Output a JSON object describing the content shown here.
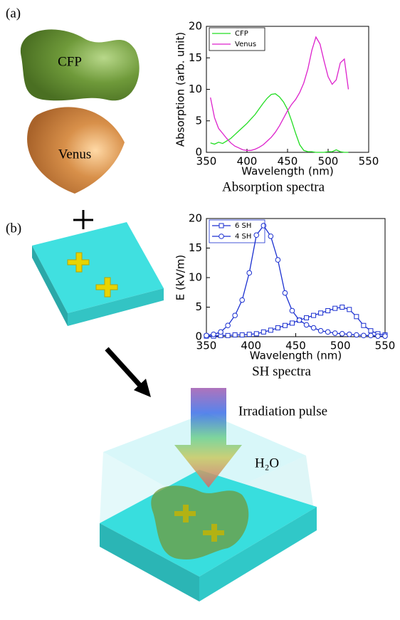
{
  "panel_labels": [
    "(a)",
    "(b)"
  ],
  "illustration": {
    "protein_1": "CFP",
    "protein_2": "Venus",
    "pulse": "Irradiation pulse",
    "medium": "H₂O"
  },
  "chart_data": [
    {
      "type": "line",
      "caption": "Absorption spectra",
      "x_label": "Wavelength (nm)",
      "y_label": "Absorption (arb. unit)",
      "xlim": [
        350,
        550
      ],
      "xticks": [
        350,
        400,
        450,
        500,
        550
      ],
      "ylim": [
        0,
        20
      ],
      "yticks": [
        0,
        5,
        10,
        15,
        20
      ],
      "legend": "upper-left",
      "x": [
        355,
        360,
        365,
        370,
        375,
        380,
        385,
        390,
        395,
        400,
        405,
        410,
        415,
        420,
        425,
        430,
        435,
        440,
        445,
        450,
        455,
        460,
        465,
        470,
        475,
        480,
        485,
        490,
        495,
        500,
        505,
        510,
        515,
        520,
        525
      ],
      "series": [
        {
          "name": "CFP",
          "color": "#22dd22",
          "values": [
            1.5,
            1.3,
            1.6,
            1.4,
            1.8,
            2.2,
            2.8,
            3.4,
            4.0,
            4.6,
            5.3,
            6.0,
            6.9,
            7.8,
            8.6,
            9.2,
            9.3,
            8.8,
            8.0,
            6.8,
            5.0,
            3.0,
            1.2,
            0.3,
            0.1,
            0.1,
            0,
            0,
            0,
            0.1,
            0.1,
            0.4,
            0.1,
            0,
            0
          ]
        },
        {
          "name": "Venus",
          "color": "#dd22cc",
          "values": [
            8.7,
            5.5,
            3.8,
            3.0,
            2.2,
            1.5,
            1.0,
            0.7,
            0.4,
            0.3,
            0.3,
            0.5,
            0.8,
            1.2,
            1.8,
            2.4,
            3.2,
            4.2,
            5.4,
            6.6,
            7.6,
            8.4,
            9.5,
            11.0,
            13.2,
            16.2,
            18.3,
            17.2,
            14.5,
            12.0,
            10.8,
            11.5,
            14.2,
            14.8,
            10.0
          ]
        }
      ]
    },
    {
      "type": "line",
      "caption": "SH spectra",
      "x_label": "Wavelength (nm)",
      "y_label": "E (kV/m)",
      "xlim": [
        350,
        550
      ],
      "xticks": [
        350,
        400,
        450,
        500,
        550
      ],
      "ylim": [
        0,
        20
      ],
      "yticks": [
        0,
        5,
        10,
        15,
        20
      ],
      "legend": "upper-left",
      "x": [
        350,
        358,
        366,
        374,
        382,
        390,
        398,
        406,
        414,
        422,
        430,
        438,
        446,
        454,
        462,
        470,
        478,
        486,
        494,
        502,
        510,
        518,
        526,
        534,
        542,
        550
      ],
      "series": [
        {
          "name": "6 SH",
          "color": "#1a2fd0",
          "marker": "square",
          "values": [
            0.1,
            0.1,
            0.2,
            0.2,
            0.3,
            0.3,
            0.4,
            0.5,
            0.8,
            1.1,
            1.5,
            1.9,
            2.3,
            2.8,
            3.2,
            3.6,
            4.0,
            4.4,
            4.8,
            5.0,
            4.6,
            3.4,
            1.9,
            1.0,
            0.5,
            0.3
          ]
        },
        {
          "name": "4 SH",
          "color": "#1a2fd0",
          "marker": "circle",
          "values": [
            0.2,
            0.4,
            0.8,
            1.9,
            3.6,
            6.2,
            10.8,
            17.2,
            18.8,
            17.0,
            13.0,
            7.4,
            4.4,
            2.8,
            2.0,
            1.5,
            1.0,
            0.8,
            0.6,
            0.5,
            0.4,
            0.3,
            0.2,
            0.2,
            0.1,
            0.1
          ]
        }
      ]
    }
  ]
}
